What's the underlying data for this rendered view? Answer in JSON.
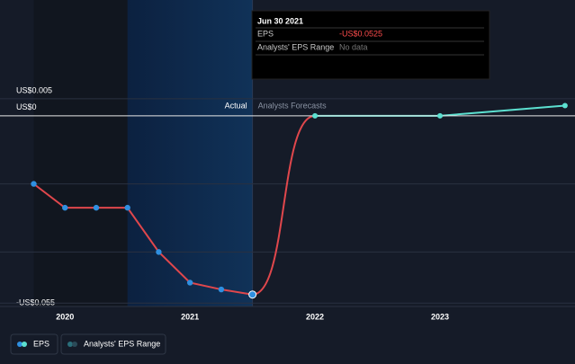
{
  "chart_data": {
    "type": "line",
    "xlim": [
      2019.48,
      2024.08
    ],
    "xticks": [
      2020,
      2021,
      2022,
      2023
    ],
    "ylim": [
      -0.056,
      0.0055
    ],
    "yticks": [
      {
        "value": 0.005,
        "label": "US$0.005"
      },
      {
        "value": 0,
        "label": "US$0"
      },
      {
        "value": -0.055,
        "label": "-US$0.055"
      }
    ],
    "gridlines": [
      -0.02,
      -0.04
    ],
    "region_labels": [
      "Actual",
      "Analysts Forecasts"
    ],
    "series": [
      {
        "name": "EPS",
        "color": "#e0474c",
        "marker_color": "#2f8fe0",
        "x": [
          2019.75,
          2020.0,
          2020.25,
          2020.5,
          2020.75,
          2021.0,
          2021.25,
          2021.5
        ],
        "values": [
          -0.02,
          -0.027,
          -0.027,
          -0.027,
          -0.04,
          -0.049,
          -0.051,
          -0.0525
        ]
      },
      {
        "name": "Analysts' EPS Range",
        "color": "#5ce0d0",
        "x": [
          2022.0,
          2023.0,
          2024.0
        ],
        "values": [
          0,
          0,
          0.003
        ]
      }
    ],
    "tooltip": {
      "title": "Jun 30 2021",
      "rows": [
        {
          "label": "EPS",
          "value": -0.0525,
          "value_label": "-US$0.0525"
        },
        {
          "label": "Analysts' EPS Range",
          "value_label": "No data"
        }
      ]
    }
  }
}
